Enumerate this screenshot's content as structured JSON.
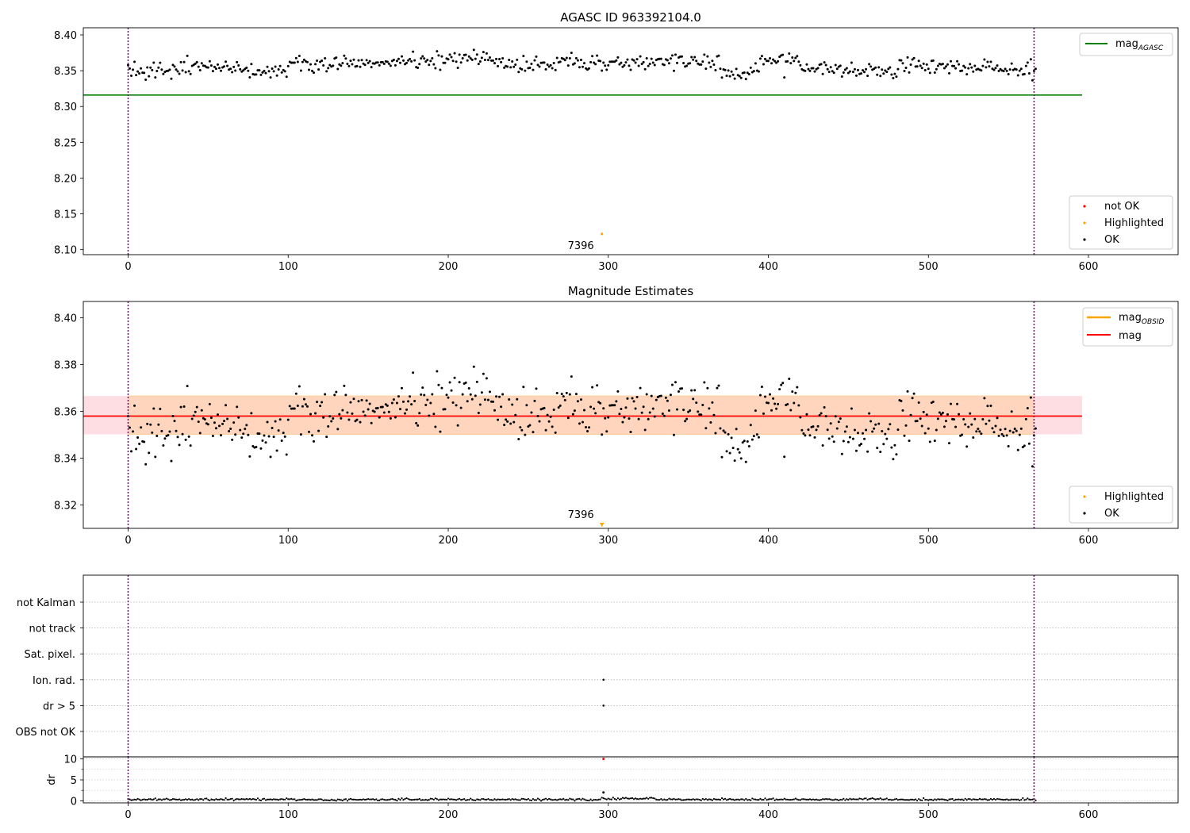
{
  "figure": {
    "title_top": "AGASC ID 963392104.0",
    "title_mid": "Magnitude Estimates"
  },
  "legends": {
    "top_line": {
      "prefix": "mag",
      "sub": "AGASC"
    },
    "top_points": [
      "not OK",
      "Highlighted",
      "OK"
    ],
    "mid_lines": [
      {
        "prefix": "mag",
        "sub": "OBSID"
      },
      {
        "prefix": "mag",
        "sub": ""
      }
    ],
    "mid_points": [
      "Highlighted",
      "OK"
    ]
  },
  "annotation": {
    "label": "7396",
    "x": 296
  },
  "colors": {
    "ok": "#000000",
    "highlighted": "#ffa500",
    "not_ok": "#ff0000",
    "agasc_line": "#008000",
    "mean_line": "#ff0000",
    "obsid_line": "#ffa500",
    "band_outer": "#ffb6c1",
    "band_inner": "#ffd2b4",
    "boundary": "#800080"
  },
  "chart_data": [
    {
      "type": "scatter",
      "title": "AGASC ID 963392104.0",
      "xlim": [
        -28,
        656
      ],
      "ylim": [
        8.093,
        8.41
      ],
      "x_ticks": [
        0,
        100,
        200,
        300,
        400,
        500,
        600
      ],
      "y_ticks": [
        "8.10",
        "8.15",
        "8.20",
        "8.25",
        "8.30",
        "8.35",
        "8.40"
      ],
      "mag_agasc": 8.316,
      "mag_agasc_x_range": [
        -28,
        596
      ],
      "obs_boundaries": [
        0,
        566
      ],
      "highlighted_point": {
        "x": 296,
        "y": 8.122
      },
      "ok_points": {
        "n": 568,
        "typical_range": [
          8.335,
          8.38
        ],
        "mean": 8.358
      },
      "legend": [
        "mag_AGASC",
        "not OK",
        "Highlighted",
        "OK"
      ]
    },
    {
      "type": "scatter",
      "title": "Magnitude Estimates",
      "xlim": [
        -28,
        656
      ],
      "ylim": [
        8.31,
        8.407
      ],
      "x_ticks": [
        0,
        100,
        200,
        300,
        400,
        500,
        600
      ],
      "y_ticks": [
        "8.32",
        "8.34",
        "8.36",
        "8.38",
        "8.40"
      ],
      "mag_mean": 8.358,
      "mag_obsid": 8.358,
      "band_range": [
        8.3502,
        8.3666
      ],
      "band_x_range": [
        -28,
        596
      ],
      "obs_boundaries": [
        0,
        566
      ],
      "highlighted_point": {
        "x": 296,
        "y": 8.311
      },
      "legend": [
        "mag_OBSID",
        "mag",
        "Highlighted",
        "OK"
      ]
    },
    {
      "type": "scatter",
      "title": "",
      "xlim": [
        -28,
        656
      ],
      "flag_labels": [
        "not Kalman",
        "not track",
        "Sat. pixel.",
        "Ion. rad.",
        "dr > 5",
        "OBS not OK"
      ],
      "flag_points": [
        {
          "flag": "Ion. rad.",
          "x": 297
        },
        {
          "flag": "dr > 5",
          "x": 297
        }
      ],
      "obs_boundaries": [
        0,
        566
      ]
    },
    {
      "type": "scatter",
      "title": "",
      "xlim": [
        -28,
        656
      ],
      "ylim": [
        -0.5,
        10.5
      ],
      "ylabel": "dr",
      "x_ticks": [
        0,
        100,
        200,
        300,
        400,
        500,
        600
      ],
      "y_ticks": [
        0,
        5,
        10
      ],
      "baseline_dr": 0.3,
      "outliers": [
        {
          "x": 297,
          "y": 10,
          "status": "not OK"
        },
        {
          "x": 297,
          "y": 2,
          "status": "OK"
        }
      ],
      "obs_boundaries": [
        0,
        566
      ]
    }
  ]
}
